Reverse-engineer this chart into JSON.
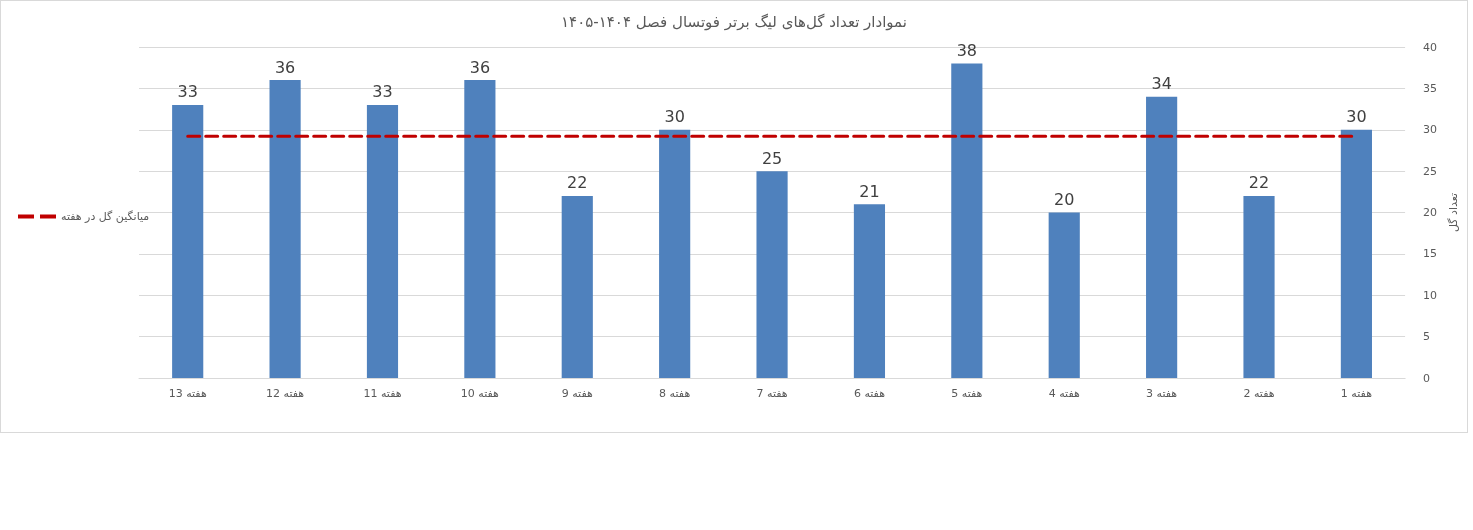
{
  "chart_data": {
    "type": "bar",
    "title": "نموادار تعداد گل‌های لیگ برتر فوتسال فصل ۱۴۰۴-۱۴۰۵",
    "ylabel": "تعداد گل",
    "categories": [
      "هفته 13",
      "هفته 12",
      "هفته 11",
      "هفته 10",
      "هفته 9",
      "هفته 8",
      "هفته 7",
      "هفته 6",
      "هفته 5",
      "هفته 4",
      "هفته 3",
      "هفته 2",
      "هفته 1"
    ],
    "series": [
      {
        "color": "#4f81bd",
        "values": [
          33,
          36,
          33,
          36,
          22,
          30,
          25,
          21,
          38,
          20,
          34,
          22,
          30
        ],
        "value_labels": [
          "33",
          "36",
          "33",
          "36",
          "22",
          "30",
          "25",
          "21",
          "38",
          "20",
          "34",
          "22",
          "30"
        ]
      },
      {
        "type": "line",
        "name": "میانگین گل در هفته",
        "color": "#c00000",
        "line_style": "dashed",
        "marker": "none",
        "values": [
          29.2,
          29.2,
          29.2,
          29.2,
          29.2,
          29.2,
          29.2,
          29.2,
          29.2,
          29.2,
          29.2,
          29.2,
          29.2
        ]
      }
    ],
    "ylim": [
      0,
      40
    ],
    "yticks": [
      0,
      5,
      10,
      15,
      20,
      25,
      30,
      35,
      40
    ],
    "grid": "y",
    "legend": "left"
  }
}
